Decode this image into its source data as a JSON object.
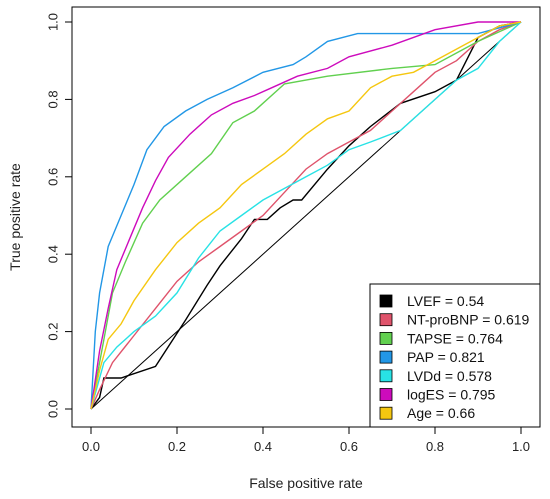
{
  "chart_data": {
    "type": "line",
    "title": "",
    "xlabel": "False positive rate",
    "ylabel": "True positive rate",
    "xlim": [
      0,
      1
    ],
    "ylim": [
      0,
      1
    ],
    "x_ticks": [
      "0.0",
      "0.2",
      "0.4",
      "0.6",
      "0.8",
      "1.0"
    ],
    "y_ticks": [
      "0.0",
      "0.2",
      "0.4",
      "0.6",
      "0.8",
      "1.0"
    ],
    "grid": false,
    "legend_position": "bottom-right",
    "reference_line": {
      "from": [
        0,
        0
      ],
      "to": [
        1,
        1
      ],
      "color": "#000000"
    },
    "series": [
      {
        "name": "LVEF = 0.54",
        "color": "#000000",
        "points": [
          [
            0,
            0
          ],
          [
            0.02,
            0.03
          ],
          [
            0.03,
            0.08
          ],
          [
            0.07,
            0.08
          ],
          [
            0.15,
            0.11
          ],
          [
            0.22,
            0.23
          ],
          [
            0.27,
            0.32
          ],
          [
            0.3,
            0.37
          ],
          [
            0.35,
            0.44
          ],
          [
            0.38,
            0.49
          ],
          [
            0.41,
            0.49
          ],
          [
            0.44,
            0.52
          ],
          [
            0.47,
            0.54
          ],
          [
            0.49,
            0.54
          ],
          [
            0.55,
            0.62
          ],
          [
            0.6,
            0.68
          ],
          [
            0.65,
            0.73
          ],
          [
            0.72,
            0.79
          ],
          [
            0.8,
            0.82
          ],
          [
            0.85,
            0.85
          ],
          [
            0.9,
            0.96
          ],
          [
            0.95,
            0.99
          ],
          [
            1,
            1
          ]
        ]
      },
      {
        "name": "NT-proBNP = 0.619",
        "color": "#df536b",
        "points": [
          [
            0,
            0
          ],
          [
            0.02,
            0.05
          ],
          [
            0.05,
            0.12
          ],
          [
            0.1,
            0.19
          ],
          [
            0.15,
            0.26
          ],
          [
            0.2,
            0.33
          ],
          [
            0.25,
            0.38
          ],
          [
            0.3,
            0.42
          ],
          [
            0.35,
            0.46
          ],
          [
            0.4,
            0.5
          ],
          [
            0.45,
            0.56
          ],
          [
            0.5,
            0.62
          ],
          [
            0.55,
            0.66
          ],
          [
            0.6,
            0.69
          ],
          [
            0.65,
            0.72
          ],
          [
            0.7,
            0.77
          ],
          [
            0.75,
            0.82
          ],
          [
            0.8,
            0.87
          ],
          [
            0.85,
            0.9
          ],
          [
            0.9,
            0.95
          ],
          [
            0.95,
            0.98
          ],
          [
            1,
            1
          ]
        ]
      },
      {
        "name": "TAPSE = 0.764",
        "color": "#61d04f",
        "points": [
          [
            0,
            0
          ],
          [
            0.02,
            0.12
          ],
          [
            0.05,
            0.3
          ],
          [
            0.08,
            0.38
          ],
          [
            0.12,
            0.48
          ],
          [
            0.16,
            0.54
          ],
          [
            0.22,
            0.6
          ],
          [
            0.28,
            0.66
          ],
          [
            0.33,
            0.74
          ],
          [
            0.38,
            0.77
          ],
          [
            0.45,
            0.84
          ],
          [
            0.55,
            0.86
          ],
          [
            0.7,
            0.88
          ],
          [
            0.8,
            0.89
          ],
          [
            0.85,
            0.92
          ],
          [
            0.9,
            0.95
          ],
          [
            1,
            1
          ]
        ]
      },
      {
        "name": "PAP = 0.821",
        "color": "#2297e6",
        "points": [
          [
            0,
            0
          ],
          [
            0.01,
            0.2
          ],
          [
            0.02,
            0.3
          ],
          [
            0.04,
            0.42
          ],
          [
            0.07,
            0.5
          ],
          [
            0.1,
            0.58
          ],
          [
            0.13,
            0.67
          ],
          [
            0.17,
            0.73
          ],
          [
            0.22,
            0.77
          ],
          [
            0.27,
            0.8
          ],
          [
            0.33,
            0.83
          ],
          [
            0.4,
            0.87
          ],
          [
            0.47,
            0.89
          ],
          [
            0.5,
            0.91
          ],
          [
            0.55,
            0.95
          ],
          [
            0.62,
            0.97
          ],
          [
            0.7,
            0.97
          ],
          [
            0.8,
            0.97
          ],
          [
            0.9,
            0.97
          ],
          [
            1,
            1
          ]
        ]
      },
      {
        "name": "LVDd = 0.578",
        "color": "#28e2e5",
        "points": [
          [
            0,
            0
          ],
          [
            0.03,
            0.12
          ],
          [
            0.06,
            0.16
          ],
          [
            0.1,
            0.2
          ],
          [
            0.15,
            0.24
          ],
          [
            0.2,
            0.3
          ],
          [
            0.25,
            0.39
          ],
          [
            0.3,
            0.46
          ],
          [
            0.35,
            0.5
          ],
          [
            0.4,
            0.54
          ],
          [
            0.45,
            0.57
          ],
          [
            0.5,
            0.6
          ],
          [
            0.55,
            0.63
          ],
          [
            0.6,
            0.67
          ],
          [
            0.65,
            0.69
          ],
          [
            0.72,
            0.72
          ],
          [
            0.78,
            0.78
          ],
          [
            0.85,
            0.85
          ],
          [
            0.9,
            0.88
          ],
          [
            0.95,
            0.95
          ],
          [
            1,
            1
          ]
        ]
      },
      {
        "name": "logES = 0.795",
        "color": "#cd0bbc",
        "points": [
          [
            0,
            0
          ],
          [
            0.02,
            0.15
          ],
          [
            0.04,
            0.26
          ],
          [
            0.06,
            0.36
          ],
          [
            0.09,
            0.44
          ],
          [
            0.12,
            0.52
          ],
          [
            0.15,
            0.59
          ],
          [
            0.18,
            0.65
          ],
          [
            0.23,
            0.71
          ],
          [
            0.28,
            0.76
          ],
          [
            0.33,
            0.79
          ],
          [
            0.38,
            0.81
          ],
          [
            0.42,
            0.83
          ],
          [
            0.48,
            0.86
          ],
          [
            0.55,
            0.88
          ],
          [
            0.6,
            0.91
          ],
          [
            0.7,
            0.94
          ],
          [
            0.8,
            0.98
          ],
          [
            0.9,
            1.0
          ],
          [
            1,
            1
          ]
        ]
      },
      {
        "name": "Age = 0.66",
        "color": "#f5c710",
        "points": [
          [
            0,
            0
          ],
          [
            0.02,
            0.1
          ],
          [
            0.04,
            0.18
          ],
          [
            0.07,
            0.22
          ],
          [
            0.1,
            0.28
          ],
          [
            0.15,
            0.36
          ],
          [
            0.2,
            0.43
          ],
          [
            0.25,
            0.48
          ],
          [
            0.3,
            0.52
          ],
          [
            0.35,
            0.58
          ],
          [
            0.4,
            0.62
          ],
          [
            0.45,
            0.66
          ],
          [
            0.5,
            0.71
          ],
          [
            0.55,
            0.75
          ],
          [
            0.6,
            0.77
          ],
          [
            0.65,
            0.83
          ],
          [
            0.7,
            0.86
          ],
          [
            0.75,
            0.87
          ],
          [
            0.8,
            0.9
          ],
          [
            0.85,
            0.93
          ],
          [
            0.9,
            0.96
          ],
          [
            0.95,
            0.99
          ],
          [
            1,
            1
          ]
        ]
      }
    ]
  }
}
